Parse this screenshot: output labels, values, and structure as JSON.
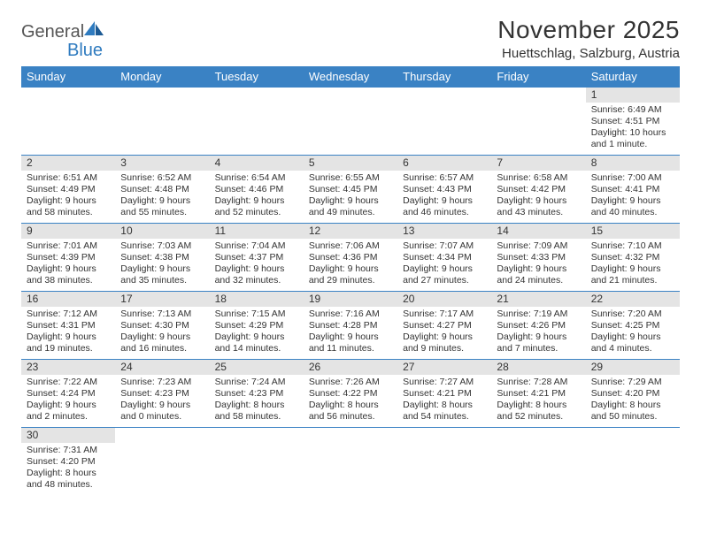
{
  "logo": {
    "text1": "General",
    "text2": "Blue"
  },
  "title": "November 2025",
  "location": "Huettschlag, Salzburg, Austria",
  "weekdays": [
    "Sunday",
    "Monday",
    "Tuesday",
    "Wednesday",
    "Thursday",
    "Friday",
    "Saturday"
  ],
  "colors": {
    "header_bg": "#3a82c4",
    "daynum_bg": "#e4e4e4",
    "rule": "#3a82c4",
    "text": "#333333"
  },
  "blank_leading": 6,
  "days": [
    {
      "n": 1,
      "sr": "6:49 AM",
      "ss": "4:51 PM",
      "dl": "10 hours and 1 minute."
    },
    {
      "n": 2,
      "sr": "6:51 AM",
      "ss": "4:49 PM",
      "dl": "9 hours and 58 minutes."
    },
    {
      "n": 3,
      "sr": "6:52 AM",
      "ss": "4:48 PM",
      "dl": "9 hours and 55 minutes."
    },
    {
      "n": 4,
      "sr": "6:54 AM",
      "ss": "4:46 PM",
      "dl": "9 hours and 52 minutes."
    },
    {
      "n": 5,
      "sr": "6:55 AM",
      "ss": "4:45 PM",
      "dl": "9 hours and 49 minutes."
    },
    {
      "n": 6,
      "sr": "6:57 AM",
      "ss": "4:43 PM",
      "dl": "9 hours and 46 minutes."
    },
    {
      "n": 7,
      "sr": "6:58 AM",
      "ss": "4:42 PM",
      "dl": "9 hours and 43 minutes."
    },
    {
      "n": 8,
      "sr": "7:00 AM",
      "ss": "4:41 PM",
      "dl": "9 hours and 40 minutes."
    },
    {
      "n": 9,
      "sr": "7:01 AM",
      "ss": "4:39 PM",
      "dl": "9 hours and 38 minutes."
    },
    {
      "n": 10,
      "sr": "7:03 AM",
      "ss": "4:38 PM",
      "dl": "9 hours and 35 minutes."
    },
    {
      "n": 11,
      "sr": "7:04 AM",
      "ss": "4:37 PM",
      "dl": "9 hours and 32 minutes."
    },
    {
      "n": 12,
      "sr": "7:06 AM",
      "ss": "4:36 PM",
      "dl": "9 hours and 29 minutes."
    },
    {
      "n": 13,
      "sr": "7:07 AM",
      "ss": "4:34 PM",
      "dl": "9 hours and 27 minutes."
    },
    {
      "n": 14,
      "sr": "7:09 AM",
      "ss": "4:33 PM",
      "dl": "9 hours and 24 minutes."
    },
    {
      "n": 15,
      "sr": "7:10 AM",
      "ss": "4:32 PM",
      "dl": "9 hours and 21 minutes."
    },
    {
      "n": 16,
      "sr": "7:12 AM",
      "ss": "4:31 PM",
      "dl": "9 hours and 19 minutes."
    },
    {
      "n": 17,
      "sr": "7:13 AM",
      "ss": "4:30 PM",
      "dl": "9 hours and 16 minutes."
    },
    {
      "n": 18,
      "sr": "7:15 AM",
      "ss": "4:29 PM",
      "dl": "9 hours and 14 minutes."
    },
    {
      "n": 19,
      "sr": "7:16 AM",
      "ss": "4:28 PM",
      "dl": "9 hours and 11 minutes."
    },
    {
      "n": 20,
      "sr": "7:17 AM",
      "ss": "4:27 PM",
      "dl": "9 hours and 9 minutes."
    },
    {
      "n": 21,
      "sr": "7:19 AM",
      "ss": "4:26 PM",
      "dl": "9 hours and 7 minutes."
    },
    {
      "n": 22,
      "sr": "7:20 AM",
      "ss": "4:25 PM",
      "dl": "9 hours and 4 minutes."
    },
    {
      "n": 23,
      "sr": "7:22 AM",
      "ss": "4:24 PM",
      "dl": "9 hours and 2 minutes."
    },
    {
      "n": 24,
      "sr": "7:23 AM",
      "ss": "4:23 PM",
      "dl": "9 hours and 0 minutes."
    },
    {
      "n": 25,
      "sr": "7:24 AM",
      "ss": "4:23 PM",
      "dl": "8 hours and 58 minutes."
    },
    {
      "n": 26,
      "sr": "7:26 AM",
      "ss": "4:22 PM",
      "dl": "8 hours and 56 minutes."
    },
    {
      "n": 27,
      "sr": "7:27 AM",
      "ss": "4:21 PM",
      "dl": "8 hours and 54 minutes."
    },
    {
      "n": 28,
      "sr": "7:28 AM",
      "ss": "4:21 PM",
      "dl": "8 hours and 52 minutes."
    },
    {
      "n": 29,
      "sr": "7:29 AM",
      "ss": "4:20 PM",
      "dl": "8 hours and 50 minutes."
    },
    {
      "n": 30,
      "sr": "7:31 AM",
      "ss": "4:20 PM",
      "dl": "8 hours and 48 minutes."
    }
  ],
  "labels": {
    "sunrise": "Sunrise:",
    "sunset": "Sunset:",
    "daylight": "Daylight:"
  }
}
